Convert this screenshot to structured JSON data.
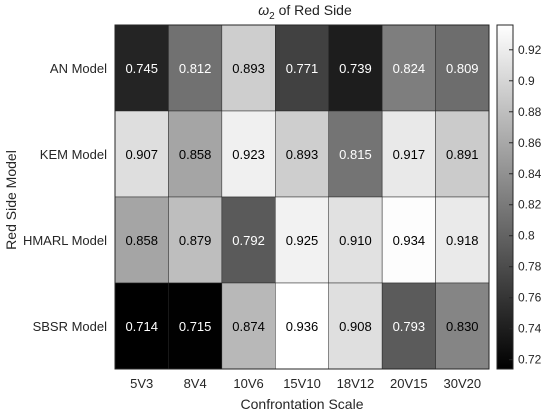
{
  "chart_data": {
    "type": "heatmap",
    "title_main": "ω",
    "title_sub": "2",
    "title_rest": " of Red Side",
    "xlabel": "Confrontation Scale",
    "ylabel": "Red Side Model",
    "x_categories": [
      "5V3",
      "8V4",
      "10V6",
      "15V10",
      "18V12",
      "20V15",
      "30V20"
    ],
    "y_categories": [
      "AN Model",
      "KEM Model",
      "HMARL Model",
      "SBSR Model"
    ],
    "values": [
      [
        0.745,
        0.812,
        0.893,
        0.771,
        0.739,
        0.824,
        0.809
      ],
      [
        0.907,
        0.858,
        0.923,
        0.893,
        0.815,
        0.917,
        0.891
      ],
      [
        0.858,
        0.879,
        0.792,
        0.925,
        0.91,
        0.934,
        0.918
      ],
      [
        0.714,
        0.715,
        0.874,
        0.936,
        0.908,
        0.793,
        0.83
      ]
    ],
    "value_labels": [
      [
        "0.745",
        "0.812",
        "0.893",
        "0.771",
        "0.739",
        "0.824",
        "0.809"
      ],
      [
        "0.907",
        "0.858",
        "0.923",
        "0.893",
        "0.815",
        "0.917",
        "0.891"
      ],
      [
        "0.858",
        "0.879",
        "0.792",
        "0.925",
        "0.910",
        "0.934",
        "0.918"
      ],
      [
        "0.714",
        "0.715",
        "0.874",
        "0.936",
        "0.908",
        "0.793",
        "0.830"
      ]
    ],
    "colormap": "gray",
    "color_range": [
      0.714,
      0.936
    ],
    "colorbar_ticks": [
      0.72,
      0.74,
      0.76,
      0.78,
      0.8,
      0.82,
      0.84,
      0.86,
      0.88,
      0.9,
      0.92
    ],
    "colorbar_tick_labels": [
      "0.72",
      "0.74",
      "0.76",
      "0.78",
      "0.8",
      "0.82",
      "0.84",
      "0.86",
      "0.88",
      "0.9",
      "0.92"
    ],
    "grid": false,
    "legend": "colorbar-right"
  }
}
